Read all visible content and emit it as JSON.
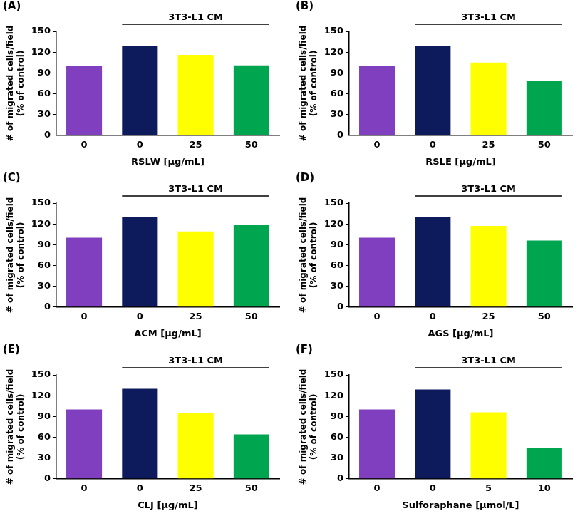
{
  "chart_data": [
    {
      "type": "bar",
      "title": "(A)",
      "annotation": "3T3-L1 CM",
      "x_label": "RSLW [μg/mL]",
      "y_label": [
        "# of migrated cells/field",
        "(% of control)"
      ],
      "categories": [
        "0",
        "0",
        "25",
        "50"
      ],
      "values": [
        100,
        129,
        116,
        101
      ],
      "colors": [
        "#7f3fbf",
        "#0d1a5c",
        "#ffff00",
        "#00a550"
      ],
      "ylim": [
        0,
        150
      ],
      "yticks": [
        0,
        30,
        60,
        90,
        120,
        150
      ],
      "grid": false
    },
    {
      "type": "bar",
      "title": "(B)",
      "annotation": "3T3-L1 CM",
      "x_label": "RSLE [μg/mL]",
      "y_label": [
        "# of migrated cells/field",
        "(% of control)"
      ],
      "categories": [
        "0",
        "0",
        "25",
        "50"
      ],
      "values": [
        100,
        129,
        105,
        79
      ],
      "colors": [
        "#7f3fbf",
        "#0d1a5c",
        "#ffff00",
        "#00a550"
      ],
      "ylim": [
        0,
        150
      ],
      "yticks": [
        0,
        30,
        60,
        90,
        120,
        150
      ],
      "grid": false
    },
    {
      "type": "bar",
      "title": "(C)",
      "annotation": "3T3-L1 CM",
      "x_label": "ACM [μg/mL]",
      "y_label": [
        "# of migrated cells/field",
        "(% of control)"
      ],
      "categories": [
        "0",
        "0",
        "25",
        "50"
      ],
      "values": [
        100,
        130,
        109,
        119
      ],
      "colors": [
        "#7f3fbf",
        "#0d1a5c",
        "#ffff00",
        "#00a550"
      ],
      "ylim": [
        0,
        150
      ],
      "yticks": [
        0,
        30,
        60,
        90,
        120,
        150
      ],
      "grid": false
    },
    {
      "type": "bar",
      "title": "(D)",
      "annotation": "3T3-L1 CM",
      "x_label": "AGS [μg/mL]",
      "y_label": [
        "# of migrated cells/field",
        "(% of control)"
      ],
      "categories": [
        "0",
        "0",
        "25",
        "50"
      ],
      "values": [
        100,
        130,
        117,
        96
      ],
      "colors": [
        "#7f3fbf",
        "#0d1a5c",
        "#ffff00",
        "#00a550"
      ],
      "ylim": [
        0,
        150
      ],
      "yticks": [
        0,
        30,
        60,
        90,
        120,
        150
      ],
      "grid": false
    },
    {
      "type": "bar",
      "title": "(E)",
      "annotation": "3T3-L1 CM",
      "x_label": "CLJ [μg/mL]",
      "y_label": [
        "# of migrated cells/field",
        "(% of control)"
      ],
      "categories": [
        "0",
        "0",
        "25",
        "50"
      ],
      "values": [
        100,
        130,
        95,
        64
      ],
      "colors": [
        "#7f3fbf",
        "#0d1a5c",
        "#ffff00",
        "#00a550"
      ],
      "ylim": [
        0,
        150
      ],
      "yticks": [
        0,
        30,
        60,
        90,
        120,
        150
      ],
      "grid": false
    },
    {
      "type": "bar",
      "title": "(F)",
      "annotation": "3T3-L1 CM",
      "x_label": "Sulforaphane [μmol/L]",
      "y_label": [
        "# of migrated cells/field",
        "(% of control)"
      ],
      "categories": [
        "0",
        "0",
        "5",
        "10"
      ],
      "values": [
        100,
        129,
        96,
        44
      ],
      "colors": [
        "#7f3fbf",
        "#0d1a5c",
        "#ffff00",
        "#00a550"
      ],
      "ylim": [
        0,
        150
      ],
      "yticks": [
        0,
        30,
        60,
        90,
        120,
        150
      ],
      "grid": false
    }
  ]
}
